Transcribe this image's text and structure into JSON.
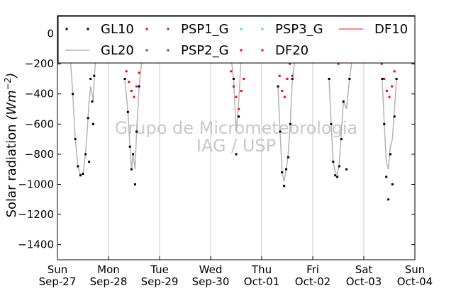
{
  "chart_data": {
    "type": "scatter",
    "ylabel": "Solar radiation",
    "ylabel_unit": "(Wm",
    "ylabel_unit_exp": "−2",
    "ylabel_unit_close": ")",
    "ylim": [
      -1500,
      120
    ],
    "yticks": [
      0,
      -200,
      -400,
      -600,
      -800,
      -1000,
      -1200,
      -1400
    ],
    "xlim": [
      0,
      7
    ],
    "xticks": [
      {
        "day": "Sun",
        "date": "Sep-27",
        "x": 0
      },
      {
        "day": "Mon",
        "date": "Sep-28",
        "x": 1
      },
      {
        "day": "Tue",
        "date": "Sep-29",
        "x": 2
      },
      {
        "day": "Wed",
        "date": "Sep-30",
        "x": 3
      },
      {
        "day": "Thu",
        "date": "Oct-01",
        "x": 4
      },
      {
        "day": "Fri",
        "date": "Oct-02",
        "x": 5
      },
      {
        "day": "Sat",
        "date": "Oct-03",
        "x": 6
      },
      {
        "day": "Sun",
        "date": "Oct-04",
        "x": 7
      }
    ],
    "grid": "vertical",
    "legend_position": "top",
    "series": [
      {
        "name": "GL10",
        "style": "dots",
        "color": "#000000",
        "x": [
          0.25,
          0.3,
          0.35,
          0.4,
          0.45,
          0.5,
          0.55,
          0.6,
          0.62,
          0.65,
          0.68,
          0.7,
          0.72,
          0.75,
          0.8,
          1.32,
          1.38,
          1.42,
          1.45,
          1.48,
          1.52,
          1.55,
          1.6,
          1.66,
          3.4,
          3.45,
          3.5,
          3.55,
          3.6,
          4.32,
          4.36,
          4.4,
          4.44,
          4.48,
          4.52,
          4.56,
          4.6,
          4.66,
          5.32,
          5.36,
          5.4,
          5.44,
          5.48,
          5.52,
          5.56,
          5.6,
          5.66,
          5.72,
          5.78,
          6.36,
          6.4,
          6.44,
          6.48,
          6.52,
          6.56,
          6.6,
          6.64
        ],
        "y": [
          -150,
          -400,
          -700,
          -880,
          -940,
          -930,
          -800,
          -560,
          -850,
          -300,
          -450,
          -600,
          -280,
          -160,
          -120,
          -300,
          -520,
          -750,
          -900,
          -800,
          -1000,
          -650,
          -350,
          -150,
          -160,
          -300,
          -800,
          -550,
          -150,
          -350,
          -650,
          -920,
          -1010,
          -900,
          -820,
          -600,
          -300,
          -150,
          -300,
          -600,
          -850,
          -940,
          -950,
          -880,
          -700,
          -450,
          -900,
          -300,
          -150,
          -300,
          -600,
          -950,
          -1100,
          -800,
          -1000,
          -550,
          -300
        ],
        "smooth_y": [
          -150,
          -400,
          -700,
          -880,
          -940,
          -930,
          -800,
          -560,
          -450,
          -350,
          -400,
          -450,
          -300,
          -160,
          -120,
          -300,
          -520,
          -750,
          -900,
          -800,
          -900,
          -650,
          -350,
          -150,
          -160,
          -300,
          -650,
          -450,
          -150,
          -350,
          -650,
          -920,
          -980,
          -900,
          -800,
          -600,
          -300,
          -150,
          -300,
          -600,
          -850,
          -920,
          -930,
          -860,
          -650,
          -450,
          -500,
          -300,
          -150,
          -300,
          -600,
          -850,
          -900,
          -750,
          -700,
          -500,
          -300
        ]
      },
      {
        "name": "GL20",
        "style": "line",
        "color": "#b4b4b4"
      },
      {
        "name": "PSP1_G",
        "style": "dots",
        "color": "#c81e1e"
      },
      {
        "name": "PSP2_G",
        "style": "dots",
        "color": "#555555"
      },
      {
        "name": "PSP3_G",
        "style": "dots",
        "color": "#40e0d0"
      },
      {
        "name": "DF20",
        "style": "dots",
        "color": "#ff0000",
        "x": [
          1.3,
          1.35,
          1.4,
          1.45,
          1.5,
          1.55,
          1.6,
          1.65,
          3.35,
          3.4,
          3.45,
          3.5,
          3.55,
          3.6,
          3.65,
          3.7,
          4.3,
          4.35,
          4.4,
          4.45,
          4.5,
          4.55,
          4.6,
          4.65,
          5.38,
          5.42,
          5.46,
          5.5,
          5.54,
          5.58,
          6.35,
          6.4,
          6.45,
          6.5,
          6.55,
          6.6
        ],
        "y": [
          -150,
          -250,
          -320,
          -380,
          -420,
          -350,
          -260,
          -180,
          -150,
          -250,
          -350,
          -420,
          -500,
          -380,
          -300,
          -180,
          -180,
          -280,
          -380,
          -420,
          -300,
          -200,
          -280,
          -180,
          -130,
          -180,
          -160,
          -200,
          -170,
          -140,
          -200,
          -300,
          -380,
          -420,
          -350,
          -250
        ]
      },
      {
        "name": "DF10",
        "style": "line",
        "color": "#ff6464"
      }
    ],
    "watermark": [
      "Grupo de Micrometeorologia",
      "IAG / USP"
    ]
  }
}
